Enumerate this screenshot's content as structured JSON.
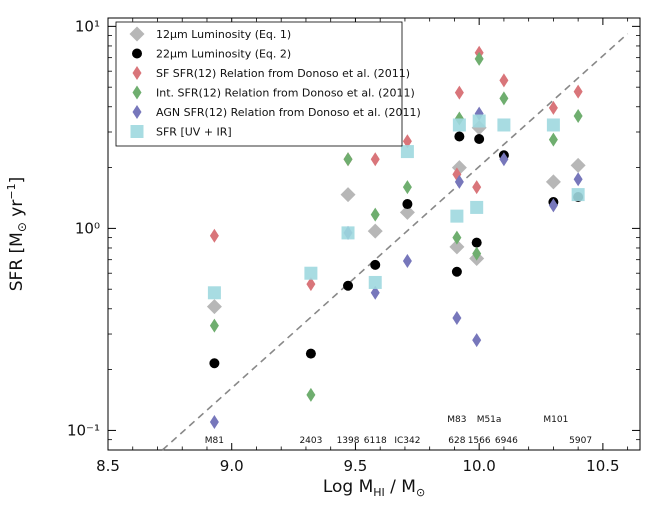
{
  "chart_data": {
    "type": "scatter",
    "xlabel": "Log M",
    "xlabel_sub": "HI",
    "xlabel_unit": " / M",
    "xlabel_unit_sub": "⊙",
    "ylabel": "SFR [M⊙ yr⁻¹]",
    "xlim": [
      8.5,
      10.65
    ],
    "ylim": [
      0.08,
      11
    ],
    "yscale": "log",
    "x_ticks": [
      8.5,
      9.0,
      9.5,
      10.0,
      10.5
    ],
    "x_tick_labels": [
      "8.5",
      "9.0",
      "9.5",
      "10.0",
      "10.5"
    ],
    "y_ticks": [
      0.1,
      1,
      10
    ],
    "y_tick_labels": [
      "10⁻¹",
      "10⁰",
      "10¹"
    ],
    "reference_line": {
      "style": "dashed",
      "x1": 8.72,
      "y1": 0.08,
      "x2": 10.6,
      "y2": 9.2
    },
    "series": [
      {
        "name": "12μm Luminosity (Eq. 1)",
        "marker": "diamond-large",
        "color": "#b7b7b7",
        "points": [
          [
            8.93,
            0.41
          ],
          [
            9.47,
            1.47
          ],
          [
            9.58,
            0.97
          ],
          [
            9.71,
            1.2
          ],
          [
            9.91,
            0.81
          ],
          [
            9.92,
            2.0
          ],
          [
            9.99,
            0.71
          ],
          [
            10.0,
            3.15
          ],
          [
            10.3,
            1.7
          ],
          [
            10.4,
            2.05
          ]
        ]
      },
      {
        "name": "22μm Luminosity (Eq. 2)",
        "marker": "circle",
        "color": "#000000",
        "points": [
          [
            8.93,
            0.215
          ],
          [
            9.32,
            0.24
          ],
          [
            9.47,
            0.52
          ],
          [
            9.58,
            0.66
          ],
          [
            9.71,
            1.32
          ],
          [
            9.91,
            0.61
          ],
          [
            9.92,
            2.85
          ],
          [
            9.99,
            0.85
          ],
          [
            10.0,
            2.77
          ],
          [
            10.1,
            2.3
          ],
          [
            10.3,
            1.35
          ],
          [
            10.4,
            1.43
          ]
        ]
      },
      {
        "name": "SF SFR(12) Relation from Donoso et al. (2011)",
        "marker": "diamond-small",
        "color": "#d9757a",
        "points": [
          [
            8.93,
            0.92
          ],
          [
            9.32,
            0.53
          ],
          [
            9.47,
            2.2
          ],
          [
            9.58,
            2.2
          ],
          [
            9.71,
            2.7
          ],
          [
            9.91,
            1.85
          ],
          [
            9.92,
            4.7
          ],
          [
            9.99,
            1.6
          ],
          [
            10.0,
            7.4
          ],
          [
            10.1,
            5.4
          ],
          [
            10.3,
            3.95
          ],
          [
            10.4,
            4.75
          ]
        ]
      },
      {
        "name": "Int. SFR(12) Relation from Donoso et al. (2011)",
        "marker": "diamond-small",
        "color": "#6fae6f",
        "points": [
          [
            8.93,
            0.33
          ],
          [
            9.32,
            0.15
          ],
          [
            9.47,
            2.2
          ],
          [
            9.58,
            1.17
          ],
          [
            9.71,
            1.6
          ],
          [
            9.91,
            0.9
          ],
          [
            9.92,
            3.5
          ],
          [
            9.99,
            0.75
          ],
          [
            10.0,
            6.9
          ],
          [
            10.1,
            4.4
          ],
          [
            10.3,
            2.75
          ],
          [
            10.4,
            3.6
          ]
        ]
      },
      {
        "name": "AGN SFR(12) Relation from Donoso et al. (2011)",
        "marker": "diamond-small",
        "color": "#7777bb",
        "points": [
          [
            8.93,
            0.11
          ],
          [
            9.47,
            0.95
          ],
          [
            9.58,
            0.48
          ],
          [
            9.71,
            0.69
          ],
          [
            9.91,
            0.36
          ],
          [
            9.92,
            1.7
          ],
          [
            9.99,
            0.28
          ],
          [
            10.0,
            3.7
          ],
          [
            10.1,
            2.2
          ],
          [
            10.3,
            1.3
          ],
          [
            10.4,
            1.75
          ]
        ]
      },
      {
        "name": "SFR [UV + IR]",
        "marker": "square",
        "color": "#9fd8df",
        "points": [
          [
            8.93,
            0.48
          ],
          [
            9.32,
            0.6
          ],
          [
            9.47,
            0.95
          ],
          [
            9.58,
            0.54
          ],
          [
            9.71,
            2.4
          ],
          [
            9.91,
            1.15
          ],
          [
            9.92,
            3.25
          ],
          [
            9.99,
            1.27
          ],
          [
            10.0,
            3.4
          ],
          [
            10.1,
            3.25
          ],
          [
            10.3,
            3.25
          ],
          [
            10.4,
            1.47
          ]
        ]
      }
    ],
    "galaxy_labels": [
      {
        "text": "M81",
        "x": 8.93,
        "row": "lower"
      },
      {
        "text": "2403",
        "x": 9.32,
        "row": "lower"
      },
      {
        "text": "1398",
        "x": 9.47,
        "row": "lower"
      },
      {
        "text": "6118",
        "x": 9.58,
        "row": "lower"
      },
      {
        "text": "IC342",
        "x": 9.71,
        "row": "lower"
      },
      {
        "text": "628",
        "x": 9.91,
        "row": "lower"
      },
      {
        "text": "1566",
        "x": 10.0,
        "row": "lower"
      },
      {
        "text": "6946",
        "x": 10.11,
        "row": "lower"
      },
      {
        "text": "5907",
        "x": 10.41,
        "row": "lower"
      },
      {
        "text": "M83",
        "x": 9.91,
        "row": "upper"
      },
      {
        "text": "M51a",
        "x": 10.04,
        "row": "upper"
      },
      {
        "text": "M101",
        "x": 10.31,
        "row": "upper"
      }
    ]
  }
}
